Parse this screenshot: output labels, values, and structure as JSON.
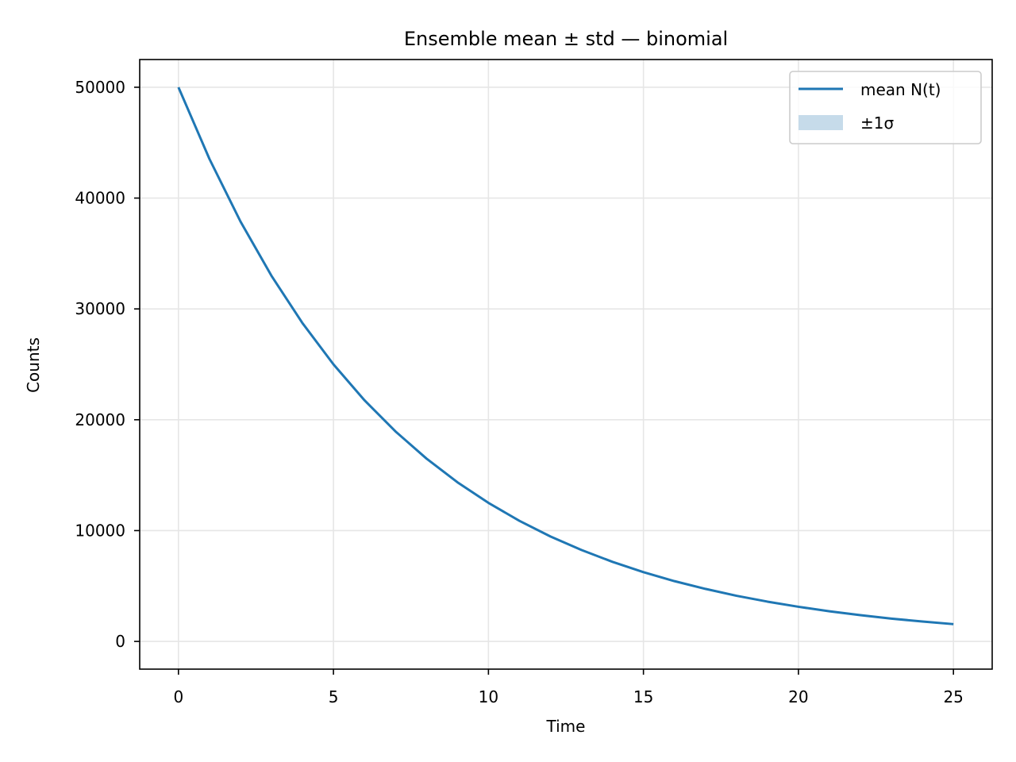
{
  "chart_data": {
    "type": "line",
    "title": "Ensemble mean ± std — binomial",
    "xlabel": "Time",
    "ylabel": "Counts",
    "xlim": [
      -1.25,
      26.25
    ],
    "ylim": [
      -2500,
      52500
    ],
    "xticks": [
      0,
      5,
      10,
      15,
      20,
      25
    ],
    "yticks": [
      0,
      10000,
      20000,
      30000,
      40000,
      50000
    ],
    "grid": true,
    "legend_position": "top-right",
    "series": [
      {
        "name": "mean N(t)",
        "color": "#1f77b4",
        "x": [
          0,
          1,
          2,
          3,
          4,
          5,
          6,
          7,
          8,
          9,
          10,
          11,
          12,
          13,
          14,
          15,
          16,
          17,
          18,
          19,
          20,
          21,
          22,
          23,
          24,
          25
        ],
        "y": [
          50000,
          43530,
          37890,
          32990,
          28720,
          25000,
          21760,
          18950,
          16500,
          14360,
          12500,
          10880,
          9470,
          8250,
          7180,
          6250,
          5440,
          4740,
          4120,
          3590,
          3125,
          2720,
          2370,
          2060,
          1795,
          1560
        ]
      }
    ],
    "band": {
      "name": "±1σ",
      "color": "#c6dbea"
    }
  }
}
